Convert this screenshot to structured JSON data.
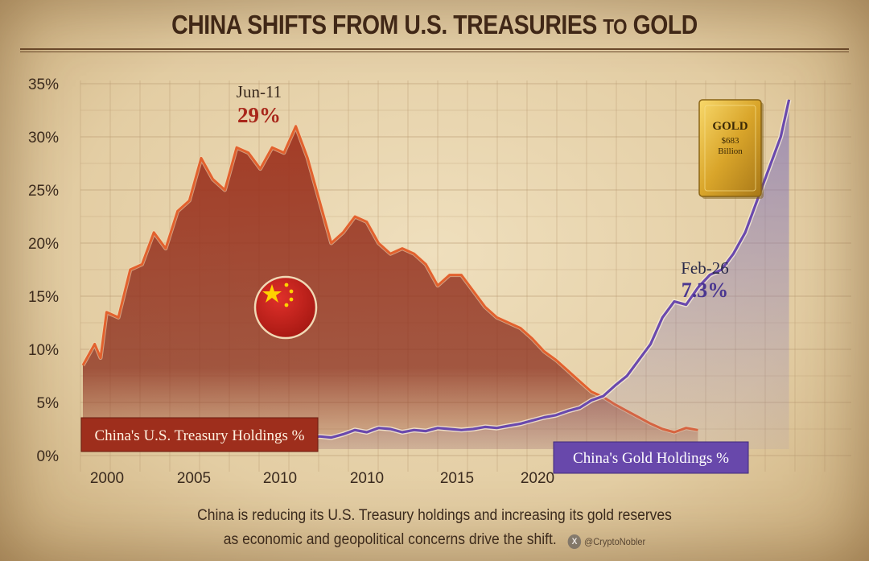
{
  "title": {
    "main": "CHINA SHIFTS FROM U.S. TREASURIES",
    "to": "TO",
    "end": "GOLD"
  },
  "caption": {
    "line1": "China is reducing its U.S. Treasury holdings and increasing its gold reserves",
    "line2": "as economic and geopolitical concerns drive the shift.",
    "handle": "@CryptoNobler",
    "handle_icon": "x-logo-icon"
  },
  "gold_bar": {
    "label": "GOLD",
    "value": "$683",
    "unit": "Billion"
  },
  "colors": {
    "treasury_line": "#e2612e",
    "treasury_fill": "#8f2a18",
    "gold_line": "#6a49ad",
    "gold_fill": "#8b7bb5",
    "gold_bar": "#d9a92c",
    "peak_text": "#a8261a",
    "feb_text": "#4a3690"
  },
  "chart_data": {
    "type": "area",
    "title": "CHINA SHIFTS FROM U.S. TREASURIES TO GOLD",
    "xlabel": "",
    "ylabel": "",
    "y_ticks": [
      "35%",
      "30%",
      "25%",
      "20%",
      "15%",
      "10%",
      "5%",
      "0%"
    ],
    "x_ticks": [
      "2000",
      "2005",
      "2010",
      "2010",
      "2015",
      "2020"
    ],
    "grid": true,
    "series": [
      {
        "name": "China's U.S. Treasury Holdings %",
        "points": [
          [
            0,
            8.5
          ],
          [
            1,
            10.5
          ],
          [
            1.5,
            9.2
          ],
          [
            2,
            13.5
          ],
          [
            3,
            13
          ],
          [
            4,
            17.5
          ],
          [
            5,
            18
          ],
          [
            6,
            21
          ],
          [
            7,
            19.5
          ],
          [
            8,
            23
          ],
          [
            9,
            24
          ],
          [
            10,
            28
          ],
          [
            11,
            26
          ],
          [
            12,
            25
          ],
          [
            13,
            29
          ],
          [
            14,
            28.5
          ],
          [
            15,
            27
          ],
          [
            16,
            29
          ],
          [
            17,
            28.5
          ],
          [
            18,
            31
          ],
          [
            19,
            28
          ],
          [
            20,
            24
          ],
          [
            21,
            20
          ],
          [
            22,
            21
          ],
          [
            23,
            22.5
          ],
          [
            24,
            22
          ],
          [
            25,
            20
          ],
          [
            26,
            19
          ],
          [
            27,
            19.5
          ],
          [
            28,
            19
          ],
          [
            29,
            18
          ],
          [
            30,
            16
          ],
          [
            31,
            17
          ],
          [
            32,
            17
          ],
          [
            33,
            15.5
          ],
          [
            34,
            14
          ],
          [
            35,
            13
          ],
          [
            36,
            12.5
          ],
          [
            37,
            12
          ],
          [
            38,
            11
          ],
          [
            39,
            9.8
          ],
          [
            40,
            9
          ],
          [
            41,
            8
          ],
          [
            42,
            7
          ],
          [
            43,
            6
          ],
          [
            44,
            5.5
          ],
          [
            45,
            4.8
          ],
          [
            46,
            4.2
          ],
          [
            47,
            3.6
          ],
          [
            48,
            3
          ],
          [
            49,
            2.5
          ],
          [
            50,
            2.2
          ],
          [
            51,
            2.6
          ],
          [
            52,
            2.4
          ]
        ]
      },
      {
        "name": "China's Gold Holdings %",
        "points": [
          [
            17.5,
            1.5
          ],
          [
            19,
            1.6
          ],
          [
            20,
            1.8
          ],
          [
            21,
            1.7
          ],
          [
            22,
            2
          ],
          [
            23,
            2.4
          ],
          [
            24,
            2.2
          ],
          [
            25,
            2.6
          ],
          [
            26,
            2.5
          ],
          [
            27,
            2.2
          ],
          [
            28,
            2.4
          ],
          [
            29,
            2.3
          ],
          [
            30,
            2.6
          ],
          [
            31,
            2.5
          ],
          [
            32,
            2.4
          ],
          [
            33,
            2.5
          ],
          [
            34,
            2.7
          ],
          [
            35,
            2.6
          ],
          [
            36,
            2.8
          ],
          [
            37,
            3
          ],
          [
            38,
            3.3
          ],
          [
            39,
            3.6
          ],
          [
            40,
            3.8
          ],
          [
            41,
            4.2
          ],
          [
            42,
            4.5
          ],
          [
            43,
            5.2
          ],
          [
            44,
            5.6
          ],
          [
            45,
            6.6
          ],
          [
            46,
            7.5
          ],
          [
            47,
            9
          ],
          [
            48,
            10.5
          ],
          [
            49,
            13
          ],
          [
            50,
            14.5
          ],
          [
            51,
            14.2
          ],
          [
            52,
            15.8
          ],
          [
            53,
            17
          ],
          [
            54,
            17.5
          ],
          [
            55,
            19
          ],
          [
            56,
            21
          ],
          [
            57,
            24
          ],
          [
            58,
            27
          ],
          [
            59,
            30
          ],
          [
            59.7,
            33.5
          ]
        ]
      }
    ],
    "annotations": [
      {
        "label": "Jun-11",
        "value": "29%"
      },
      {
        "label": "Feb-26",
        "value": "7.3%"
      }
    ]
  }
}
